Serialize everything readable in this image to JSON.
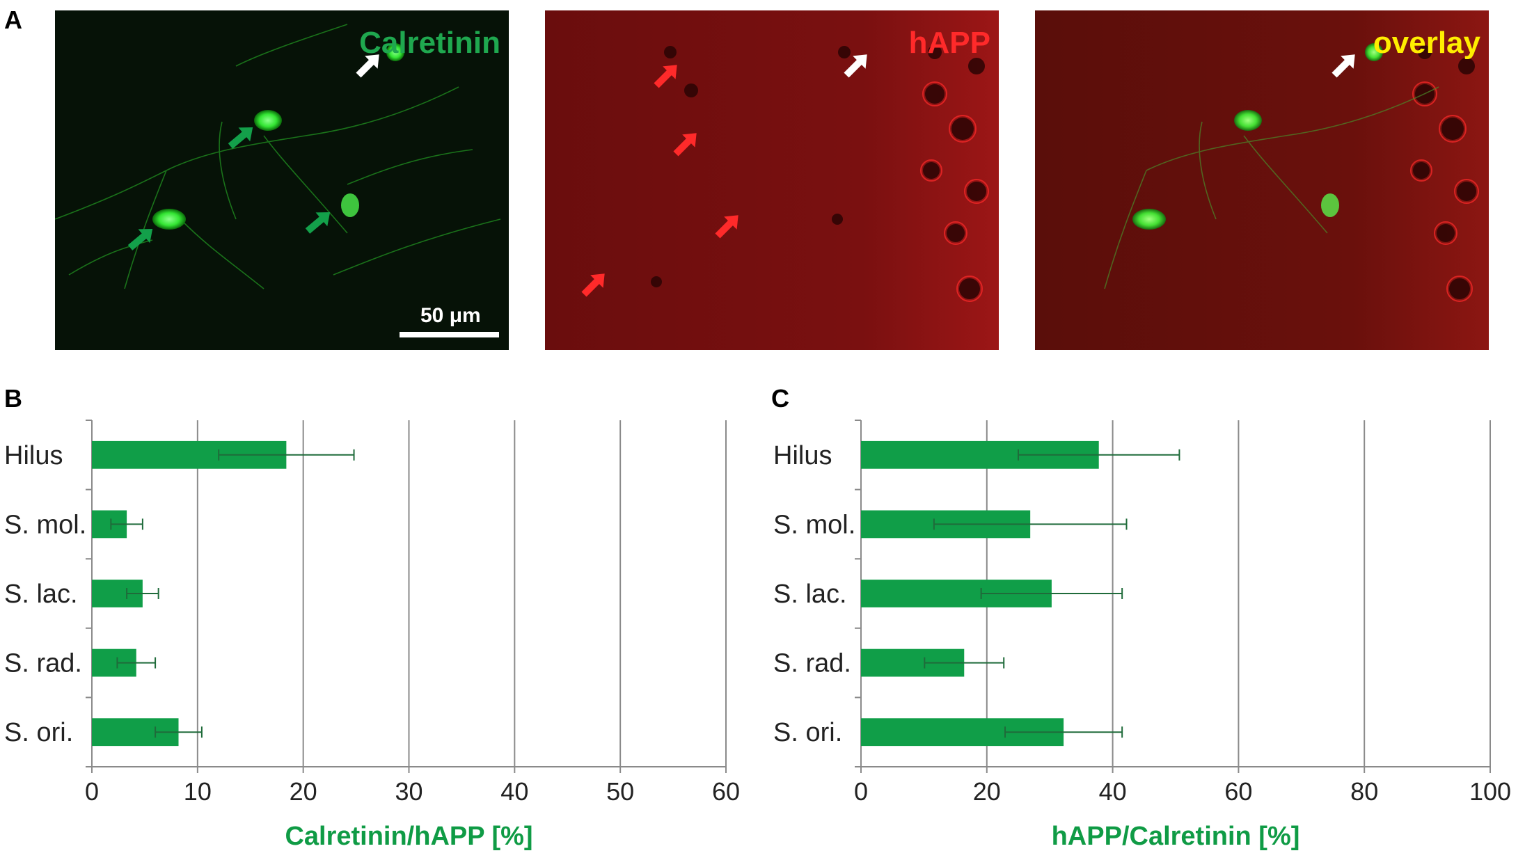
{
  "panels": {
    "a": "A",
    "b": "B",
    "c": "C"
  },
  "micrographs": [
    {
      "label": "Calretinin",
      "label_color": "#1fa84f",
      "tint": "green"
    },
    {
      "label": "hAPP",
      "label_color": "#ff2a2a",
      "tint": "red"
    },
    {
      "label": "overlay",
      "label_color": "#ffee00",
      "tint": "overlay"
    }
  ],
  "scale_bar": {
    "label": "50 μm"
  },
  "colors": {
    "bar": "#109e48",
    "error": "#1f6b3a",
    "axis_title": "#0f9b45",
    "grid": "#8a8a8a"
  },
  "chart_data": [
    {
      "type": "bar",
      "orientation": "horizontal",
      "categories": [
        "Hilus",
        "S. mol.",
        "S. lac.",
        "S. rad.",
        "S. ori."
      ],
      "values": [
        18.4,
        3.3,
        4.8,
        4.2,
        8.2
      ],
      "errors": [
        6.4,
        1.5,
        1.5,
        1.8,
        2.2
      ],
      "xlabel": "Calretinin/hAPP [%]",
      "xlim": [
        0,
        60
      ],
      "xticks": [
        0,
        10,
        20,
        30,
        40,
        50,
        60
      ],
      "grid": "vertical"
    },
    {
      "type": "bar",
      "orientation": "horizontal",
      "categories": [
        "Hilus",
        "S. mol.",
        "S. lac.",
        "S. rad.",
        "S. ori."
      ],
      "values": [
        37.8,
        26.9,
        30.3,
        16.4,
        32.2
      ],
      "errors": [
        12.8,
        15.3,
        11.2,
        6.3,
        9.3
      ],
      "xlabel": "hAPP/Calretinin [%]",
      "xlim": [
        0,
        100
      ],
      "xticks": [
        0,
        20,
        40,
        60,
        80,
        100
      ],
      "grid": "vertical"
    }
  ]
}
